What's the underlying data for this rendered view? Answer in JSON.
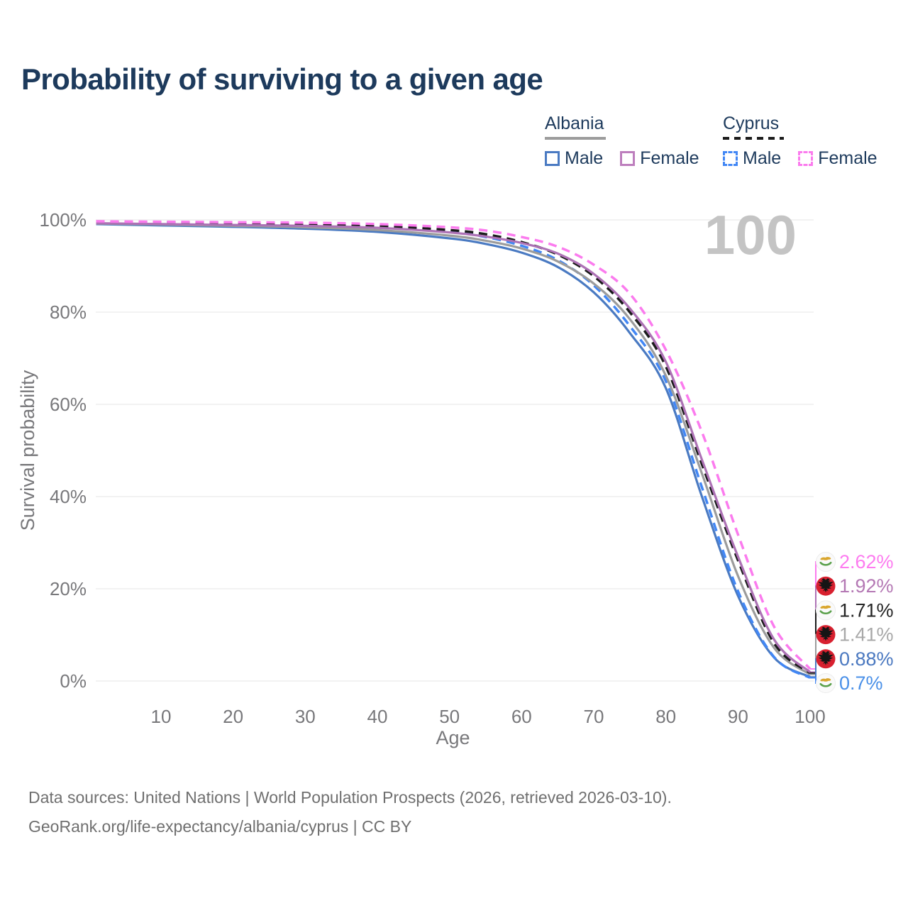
{
  "header": {
    "title": "Probability of surviving to a given age"
  },
  "legend": {
    "groups": [
      {
        "title": "Albania",
        "line_style": "solid",
        "underline_color": "#9c9c9c",
        "items": [
          {
            "label": "Male",
            "color": "#4a7ac2",
            "dashed": false
          },
          {
            "label": "Female",
            "color": "#bd7ebd",
            "dashed": false
          }
        ]
      },
      {
        "title": "Cyprus",
        "line_style": "dashed",
        "underline_color": "#1b1b1b",
        "items": [
          {
            "label": "Male",
            "color": "#4287f5",
            "dashed": true
          },
          {
            "label": "Female",
            "color": "#fb7bee",
            "dashed": true
          }
        ]
      }
    ]
  },
  "chart_data": {
    "type": "line",
    "title": "Probability of surviving to a given age",
    "xlabel": "Age",
    "ylabel": "Survival probability",
    "xlim": [
      0,
      100
    ],
    "ylim": [
      0,
      100
    ],
    "grid": "horizontal",
    "legend_position": "top-right",
    "hover_age_label": "100",
    "x_ticks": [
      10,
      20,
      30,
      40,
      50,
      60,
      70,
      80,
      90,
      100
    ],
    "y_ticks": [
      "0%",
      "20%",
      "40%",
      "60%",
      "80%",
      "100%"
    ],
    "x": [
      1,
      10,
      20,
      30,
      40,
      50,
      55,
      60,
      65,
      70,
      75,
      80,
      85,
      90,
      95,
      100
    ],
    "series": [
      {
        "name": "Albania Male",
        "country": "Albania",
        "sex": "Male",
        "line": "solid",
        "color": "#4a7ac2",
        "label_color": "#4a78c0",
        "end_label": "0.88%",
        "flag_icon": "albania-flag-icon",
        "values": [
          99.1,
          98.8,
          98.5,
          98.1,
          97.4,
          96.0,
          94.8,
          92.9,
          89.8,
          84.3,
          75.5,
          63.5,
          40.0,
          18.5,
          5.1,
          0.88
        ]
      },
      {
        "name": "Cyprus Male",
        "country": "Cyprus",
        "sex": "Male",
        "line": "dashed",
        "color": "#4287f5",
        "label_color": "#4a90e8",
        "end_label": "0.7%",
        "flag_icon": "cyprus-flag-icon",
        "values": [
          99.6,
          99.5,
          99.3,
          99.0,
          98.5,
          97.4,
          96.3,
          94.4,
          91.3,
          85.8,
          77.0,
          65.0,
          42.0,
          19.5,
          5.2,
          0.7
        ]
      },
      {
        "name": "Albania Total",
        "country": "Albania",
        "sex": "Total",
        "line": "solid",
        "color": "#9c9c9c",
        "label_color": "#a8a8a8",
        "end_label": "1.41%",
        "flag_icon": "albania-flag-icon",
        "values": [
          99.2,
          99.0,
          98.7,
          98.4,
          97.8,
          96.6,
          95.5,
          93.8,
          91.0,
          86.2,
          78.5,
          66.2,
          45.0,
          22.8,
          7.2,
          1.41
        ]
      },
      {
        "name": "Cyprus Total",
        "country": "Cyprus",
        "sex": "Total",
        "line": "dashed",
        "color": "#1b1b1b",
        "label_color": "#242424",
        "end_label": "1.71%",
        "flag_icon": "cyprus-flag-icon",
        "values": [
          99.6,
          99.5,
          99.4,
          99.1,
          98.7,
          97.8,
          96.9,
          95.2,
          92.5,
          87.8,
          80.0,
          68.2,
          47.0,
          26.2,
          8.2,
          1.71
        ]
      },
      {
        "name": "Albania Female",
        "country": "Albania",
        "sex": "Female",
        "line": "solid",
        "color": "#ad72b5",
        "label_color": "#b478b4",
        "end_label": "1.92%",
        "flag_icon": "albania-flag-icon",
        "values": [
          99.3,
          99.1,
          98.9,
          98.7,
          98.3,
          97.3,
          96.4,
          95.0,
          92.7,
          88.3,
          80.8,
          69.2,
          48.0,
          27.0,
          9.0,
          1.92
        ]
      },
      {
        "name": "Cyprus Female",
        "country": "Cyprus",
        "sex": "Female",
        "line": "dashed",
        "color": "#fb7bee",
        "label_color": "#fd7cf0",
        "end_label": "2.62%",
        "flag_icon": "cyprus-flag-icon",
        "values": [
          99.7,
          99.6,
          99.5,
          99.4,
          99.1,
          98.4,
          97.7,
          96.3,
          94.2,
          90.3,
          84.0,
          71.8,
          54.0,
          31.8,
          11.8,
          2.62
        ]
      }
    ]
  },
  "palette": {
    "title_text": "#1d3a5c",
    "axis_text": "#78787b",
    "grid_line": "#e9e9e9",
    "watermark": "#c4c4c4",
    "footer_text": "#6f6f6f",
    "albania_flag_red": "#d8202f",
    "albania_flag_eagle": "#151515",
    "cyprus_flag_bg": "#fafafa",
    "cyprus_flag_island": "#d9a62f",
    "cyprus_flag_branch": "#5aa04a"
  },
  "icons": {
    "albania": "albania-flag-icon",
    "cyprus": "cyprus-flag-icon"
  },
  "footer": {
    "line1": "Data sources: United Nations | World Population Prospects (2026, retrieved 2026-03-10).",
    "line2": "GeoRank.org/life-expectancy/albania/cyprus | CC BY"
  }
}
